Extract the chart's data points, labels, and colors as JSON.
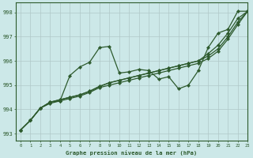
{
  "background_color": "#cce8e8",
  "grid_color": "#b0c8c8",
  "line_color": "#2d5a2d",
  "marker_color": "#2d5a2d",
  "title": "Graphe pression niveau de la mer (hPa)",
  "ylabel_ticks": [
    993,
    994,
    995,
    996,
    997,
    998
  ],
  "xlim": [
    -0.5,
    23
  ],
  "ylim": [
    992.7,
    998.4
  ],
  "series1_x": [
    0,
    1,
    2,
    3,
    4,
    5,
    6,
    7,
    8,
    9,
    10,
    11,
    12,
    13,
    14,
    15,
    16,
    17,
    18,
    19,
    20,
    21,
    22,
    23
  ],
  "series1_y": [
    993.15,
    993.55,
    994.05,
    994.3,
    994.35,
    995.4,
    995.75,
    995.95,
    996.55,
    996.6,
    995.5,
    995.55,
    995.65,
    995.6,
    995.25,
    995.35,
    994.85,
    995.0,
    995.6,
    996.55,
    997.15,
    997.3,
    998.05,
    998.05
  ],
  "series2_x": [
    0,
    1,
    2,
    3,
    4,
    5,
    6,
    7,
    8,
    9,
    10,
    11,
    12,
    13,
    14,
    15,
    16,
    17,
    18,
    19,
    20,
    21,
    22,
    23
  ],
  "series2_y": [
    993.15,
    993.55,
    994.05,
    994.3,
    994.4,
    994.5,
    994.6,
    994.75,
    994.95,
    995.1,
    995.2,
    995.3,
    995.4,
    995.5,
    995.6,
    995.7,
    995.8,
    995.9,
    996.0,
    996.3,
    996.65,
    997.15,
    997.75,
    998.05
  ],
  "series3_x": [
    0,
    1,
    2,
    3,
    4,
    5,
    6,
    7,
    8,
    9,
    10,
    11,
    12,
    13,
    14,
    15,
    16,
    17,
    18,
    19,
    20,
    21,
    22,
    23
  ],
  "series3_y": [
    993.15,
    993.55,
    994.05,
    994.3,
    994.4,
    994.5,
    994.6,
    994.75,
    994.95,
    995.1,
    995.2,
    995.3,
    995.4,
    995.5,
    995.6,
    995.7,
    995.8,
    995.9,
    996.0,
    996.2,
    996.5,
    997.0,
    997.6,
    998.05
  ],
  "series4_x": [
    0,
    1,
    2,
    3,
    4,
    5,
    6,
    7,
    8,
    9,
    10,
    11,
    12,
    13,
    14,
    15,
    16,
    17,
    18,
    19,
    20,
    21,
    22,
    23
  ],
  "series4_y": [
    993.15,
    993.55,
    994.05,
    994.25,
    994.35,
    994.45,
    994.55,
    994.7,
    994.9,
    995.0,
    995.1,
    995.2,
    995.3,
    995.4,
    995.5,
    995.6,
    995.7,
    995.8,
    995.9,
    996.1,
    996.4,
    996.9,
    997.5,
    998.05
  ],
  "font_family": "monospace",
  "lw": 0.9,
  "ms": 2.2
}
